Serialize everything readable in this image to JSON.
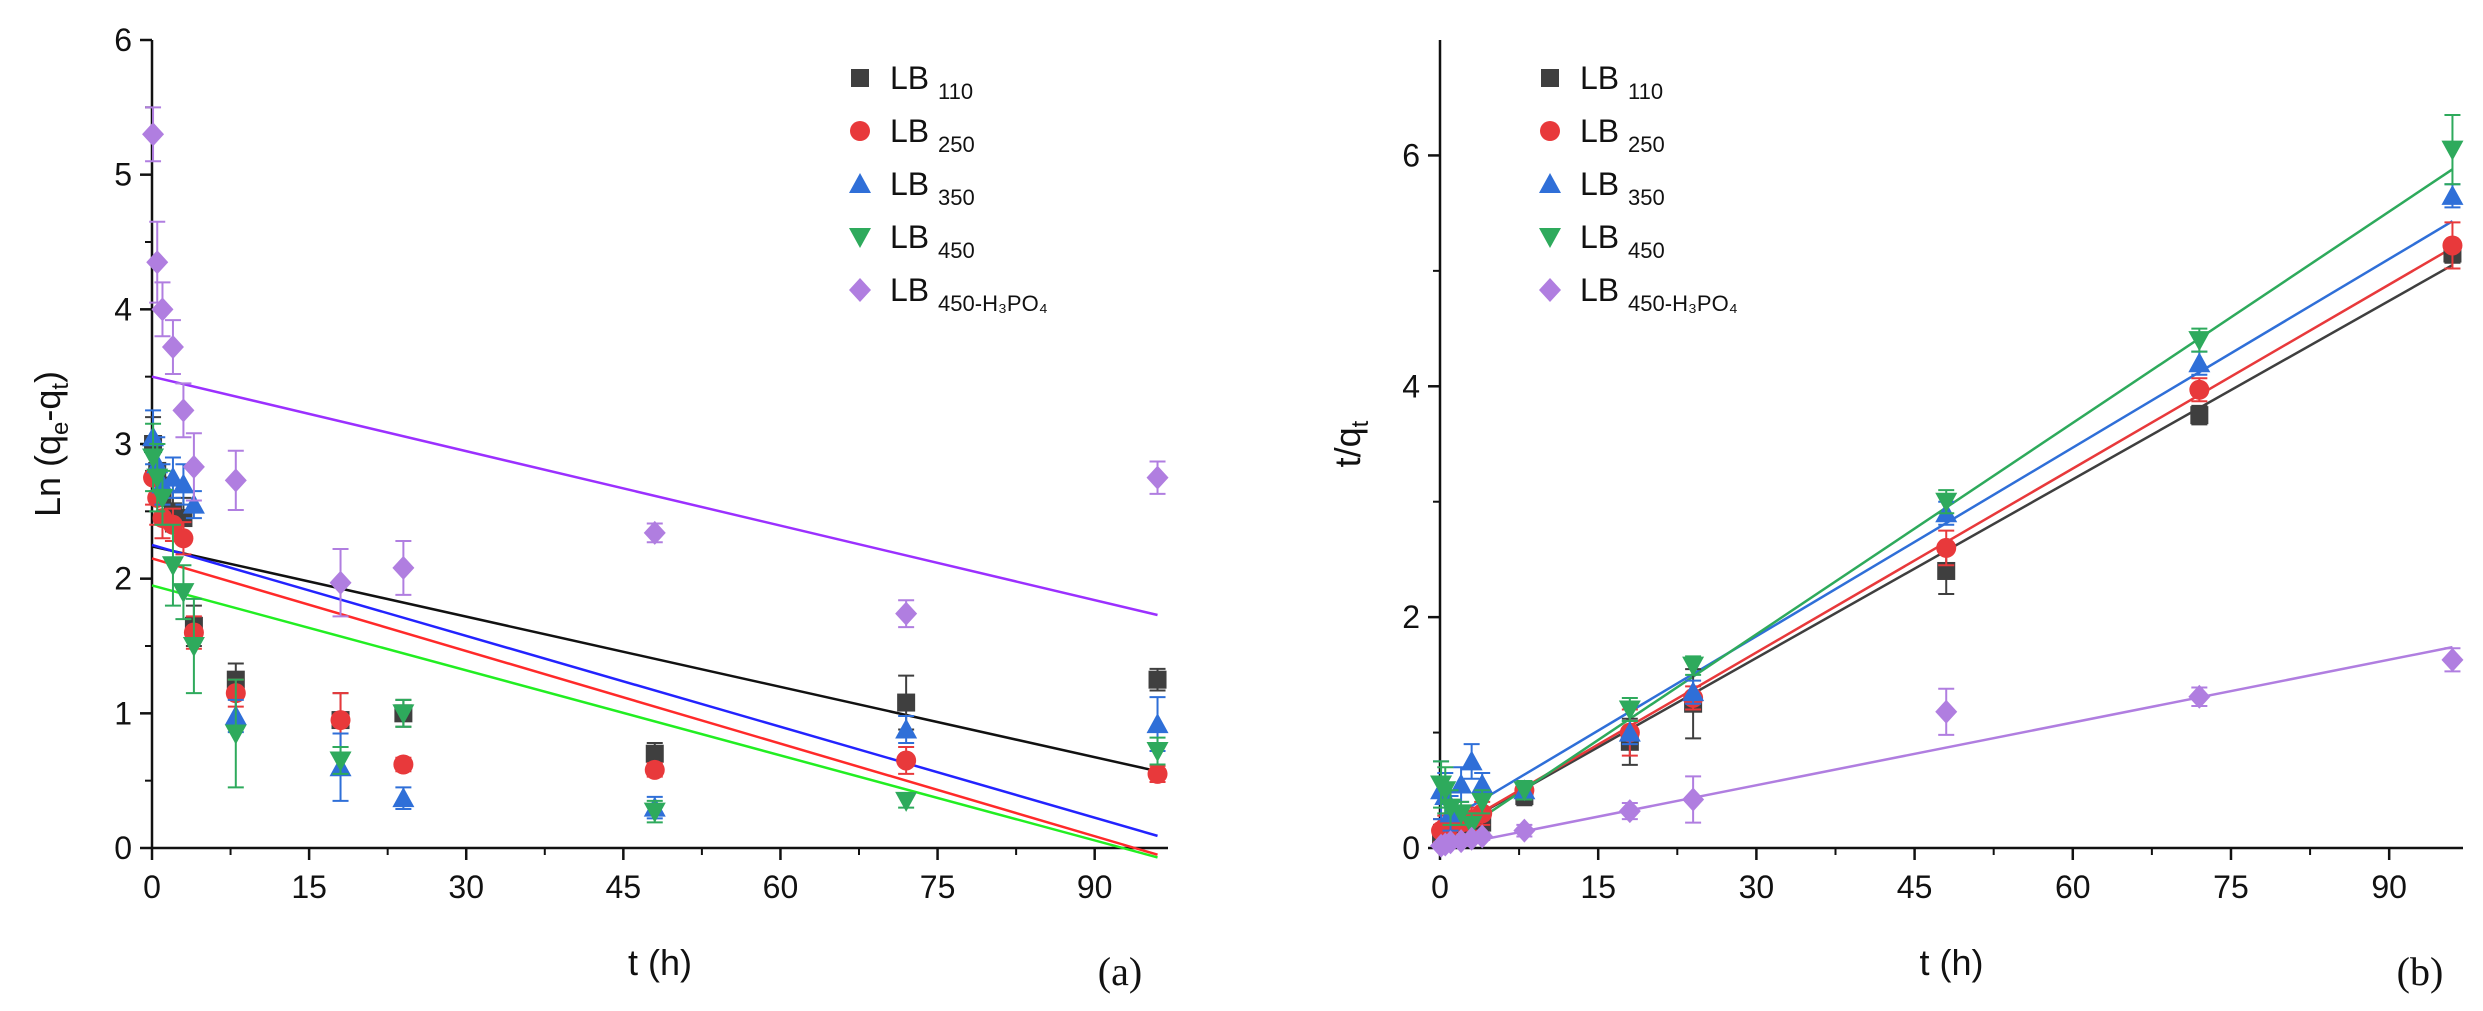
{
  "chart_data": [
    {
      "type": "scatter",
      "panel_label": "(a)",
      "xlabel": "t (h)",
      "ylabel_main": "Ln (q",
      "ylabel_sub1": "e",
      "ylabel_mid": "-q",
      "ylabel_sub2": "t",
      "ylabel_end": ")",
      "xlim": [
        0,
        97
      ],
      "ylim": [
        0,
        6
      ],
      "x_ticks": [
        "0",
        "15",
        "30",
        "45",
        "60",
        "75",
        "90"
      ],
      "y_ticks": [
        "0",
        "1",
        "2",
        "3",
        "4",
        "5",
        "6"
      ],
      "legend_position": "top-right",
      "x": [
        0.1,
        0.5,
        1,
        2,
        3,
        4,
        8,
        18,
        24,
        48,
        72,
        96
      ],
      "series": [
        {
          "name": "LB",
          "sub": "110",
          "color": "#3f3f3f",
          "marker": "square",
          "values": [
            3.0,
            2.8,
            2.6,
            2.5,
            2.45,
            1.65,
            1.25,
            0.95,
            1.0,
            0.7,
            1.08,
            1.25
          ],
          "errors": [
            0.2,
            0.2,
            0.15,
            0.15,
            0.15,
            0.15,
            0.12,
            0.2,
            0.1,
            0.08,
            0.2,
            0.08
          ],
          "fit": [
            2.24,
            0.57
          ]
        },
        {
          "name": "LB",
          "sub": "250",
          "color": "#e8393b",
          "marker": "circle",
          "values": [
            2.75,
            2.6,
            2.45,
            2.4,
            2.3,
            1.6,
            1.15,
            0.95,
            0.62,
            0.58,
            0.65,
            0.55
          ],
          "errors": [
            0.2,
            0.2,
            0.15,
            0.12,
            0.12,
            0.12,
            0.1,
            0.2,
            0.05,
            0.05,
            0.1,
            0.06
          ],
          "fit": [
            2.15,
            -0.05
          ]
        },
        {
          "name": "LB",
          "sub": "350",
          "color": "#2f6fd8",
          "marker": "triangle-up",
          "values": [
            3.05,
            2.85,
            2.7,
            2.75,
            2.7,
            2.55,
            0.98,
            0.6,
            0.37,
            0.3,
            0.88,
            0.92
          ],
          "errors": [
            0.2,
            0.2,
            0.15,
            0.15,
            0.15,
            0.1,
            0.12,
            0.25,
            0.08,
            0.08,
            0.1,
            0.2
          ],
          "fit": [
            2.25,
            0.09
          ]
        },
        {
          "name": "LB",
          "sub": "450",
          "color": "#2eaa5c",
          "marker": "triangle-down",
          "values": [
            2.9,
            2.75,
            2.6,
            2.1,
            1.9,
            1.5,
            0.85,
            0.65,
            1.0,
            0.27,
            0.35,
            0.72
          ],
          "errors": [
            0.25,
            0.25,
            0.2,
            0.3,
            0.2,
            0.35,
            0.4,
            0.1,
            0.1,
            0.08,
            0.05,
            0.1
          ],
          "fit": [
            1.95,
            -0.07
          ]
        },
        {
          "name": "LB",
          "sub": "450-H₃PO₄",
          "color": "#b07ee0",
          "marker": "diamond",
          "values": [
            5.3,
            4.35,
            4.0,
            3.72,
            3.25,
            2.83,
            2.73,
            1.97,
            2.08,
            2.34,
            1.74,
            2.75
          ],
          "errors": [
            0.2,
            0.3,
            0.2,
            0.2,
            0.2,
            0.25,
            0.22,
            0.25,
            0.2,
            0.07,
            0.1,
            0.12
          ],
          "fit": [
            3.5,
            1.73
          ]
        }
      ],
      "fit_colors": [
        "#111111",
        "#ff2a2a",
        "#2323ff",
        "#22ee22",
        "#9b30ff"
      ]
    },
    {
      "type": "scatter",
      "panel_label": "(b)",
      "xlabel": "t (h)",
      "ylabel_main": "t/q",
      "ylabel_sub1": "t",
      "xlim": [
        0,
        97
      ],
      "ylim": [
        0,
        7
      ],
      "x_ticks": [
        "0",
        "15",
        "30",
        "45",
        "60",
        "75",
        "90"
      ],
      "y_ticks": [
        "0",
        "2",
        "4",
        "6"
      ],
      "y_tick_values": [
        0,
        2,
        4,
        6
      ],
      "legend_position": "top-left",
      "x": [
        0.1,
        0.5,
        1,
        2,
        3,
        4,
        8,
        18,
        24,
        48,
        72,
        96
      ],
      "series": [
        {
          "name": "LB",
          "sub": "110",
          "color": "#3f3f3f",
          "marker": "square",
          "values": [
            0.1,
            0.12,
            0.15,
            0.18,
            0.2,
            0.22,
            0.45,
            0.92,
            1.25,
            2.4,
            3.75,
            5.15
          ],
          "errors": [
            0.1,
            0.1,
            0.1,
            0.1,
            0.1,
            0.1,
            0.08,
            0.2,
            0.3,
            0.2,
            0.08,
            0.08
          ],
          "fit": [
            0.1,
            5.05
          ]
        },
        {
          "name": "LB",
          "sub": "250",
          "color": "#e8393b",
          "marker": "circle",
          "values": [
            0.15,
            0.18,
            0.2,
            0.22,
            0.25,
            0.3,
            0.5,
            1.0,
            1.3,
            2.6,
            3.97,
            5.22
          ],
          "errors": [
            0.1,
            0.1,
            0.1,
            0.1,
            0.1,
            0.1,
            0.08,
            0.2,
            0.1,
            0.15,
            0.1,
            0.2
          ],
          "fit": [
            0.1,
            5.2
          ]
        },
        {
          "name": "LB",
          "sub": "350",
          "color": "#2f6fd8",
          "marker": "triangle-up",
          "values": [
            0.5,
            0.45,
            0.3,
            0.55,
            0.75,
            0.55,
            0.5,
            1.0,
            1.35,
            2.9,
            4.2,
            5.65
          ],
          "errors": [
            0.25,
            0.2,
            0.15,
            0.15,
            0.15,
            0.1,
            0.08,
            0.1,
            0.1,
            0.1,
            0.1,
            0.1
          ],
          "fit": [
            0.2,
            5.43
          ]
        },
        {
          "name": "LB",
          "sub": "450",
          "color": "#2eaa5c",
          "marker": "triangle-down",
          "values": [
            0.55,
            0.5,
            0.35,
            0.3,
            0.2,
            0.4,
            0.5,
            1.2,
            1.58,
            3.0,
            4.4,
            6.05
          ],
          "errors": [
            0.2,
            0.2,
            0.15,
            0.1,
            0.1,
            0.1,
            0.08,
            0.1,
            0.08,
            0.1,
            0.1,
            0.3
          ],
          "fit": [
            0.02,
            5.88
          ]
        },
        {
          "name": "LB",
          "sub": "450-H₃PO₄",
          "color": "#b07ee0",
          "marker": "diamond",
          "values": [
            0.02,
            0.03,
            0.05,
            0.06,
            0.08,
            0.1,
            0.15,
            0.32,
            0.42,
            1.18,
            1.31,
            1.63
          ],
          "errors": [
            0.02,
            0.02,
            0.03,
            0.03,
            0.03,
            0.03,
            0.05,
            0.07,
            0.2,
            0.2,
            0.08,
            0.1
          ],
          "fit": [
            0.0,
            1.74
          ]
        }
      ],
      "fit_colors": [
        "#3f3f3f",
        "#e8393b",
        "#2f6fd8",
        "#2eaa5c",
        "#b07ee0"
      ]
    }
  ]
}
